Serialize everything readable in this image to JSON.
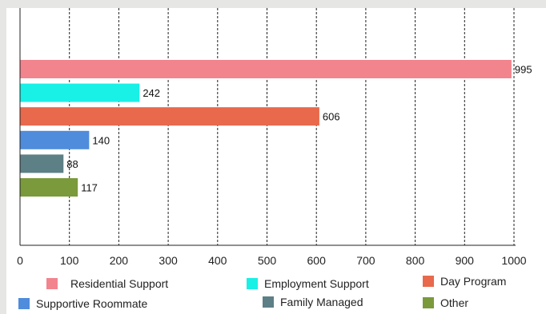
{
  "chart_data": {
    "type": "bar",
    "orientation": "horizontal",
    "categories": [
      "Residential Support",
      "Employment Support",
      "Day Program",
      "Supportive Roommate",
      "Family Managed",
      "Other"
    ],
    "values": [
      995,
      242,
      606,
      140,
      88,
      117
    ],
    "colors": [
      "#f2848d",
      "#19f0e6",
      "#e8694c",
      "#4f8cdc",
      "#5d7f86",
      "#7a9a3c"
    ],
    "xlim": [
      0,
      1000
    ],
    "xticks": [
      0,
      100,
      200,
      300,
      400,
      500,
      600,
      700,
      800,
      900,
      1000
    ],
    "grid": "vertical dashed",
    "legend_position": "bottom",
    "title": "",
    "xlabel": "",
    "ylabel": ""
  }
}
